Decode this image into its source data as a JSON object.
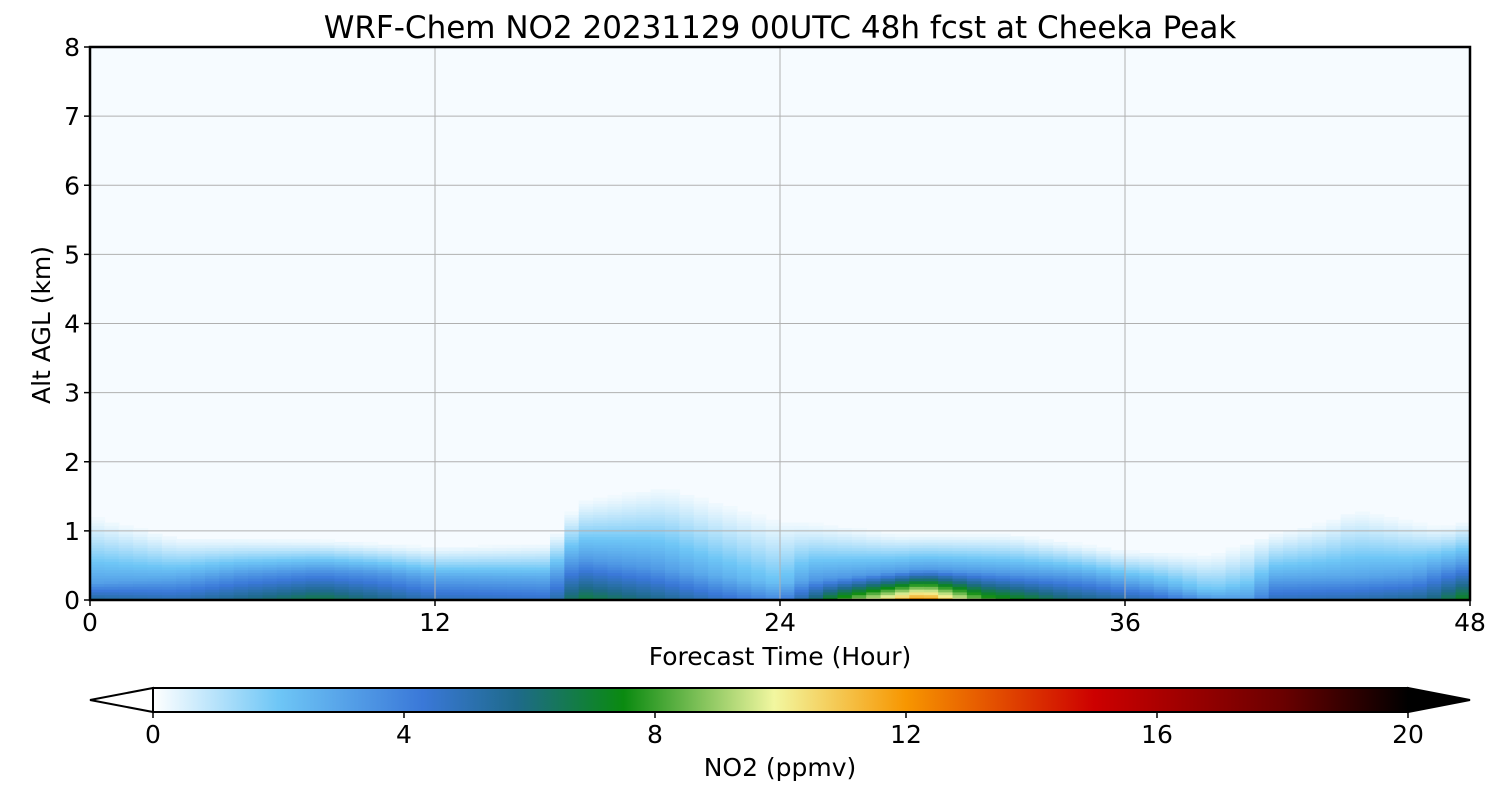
{
  "chart_data": {
    "type": "heatmap",
    "title": "WRF-Chem NO2  20231129 00UTC 48h fcst at Cheeka Peak",
    "xlabel": "Forecast Time (Hour)",
    "ylabel": "Alt AGL (km)",
    "xlim": [
      0,
      48
    ],
    "ylim": [
      0,
      8
    ],
    "x_ticks": [
      "0",
      "12",
      "24",
      "36",
      "48"
    ],
    "y_ticks": [
      "0",
      "1",
      "2",
      "3",
      "4",
      "5",
      "6",
      "7",
      "8"
    ],
    "grid": true,
    "colorbar": {
      "label": "NO2  (ppmv)",
      "min": 0,
      "max": 20,
      "ticks": [
        "0",
        "4",
        "8",
        "12",
        "16",
        "20"
      ],
      "extend": "both",
      "color_stops": [
        {
          "v": 0,
          "c": "#ffffff"
        },
        {
          "v": 2,
          "c": "#6ec6f6"
        },
        {
          "v": 4.3,
          "c": "#3a78d8"
        },
        {
          "v": 5.8,
          "c": "#1e6a8a"
        },
        {
          "v": 7.5,
          "c": "#0a8a10"
        },
        {
          "v": 9.9,
          "c": "#f2f7a0"
        },
        {
          "v": 12,
          "c": "#f79600"
        },
        {
          "v": 15,
          "c": "#cd0000"
        },
        {
          "v": 18,
          "c": "#6a0000"
        },
        {
          "v": 20,
          "c": "#000000"
        }
      ]
    },
    "field": {
      "units": "ppmv",
      "surface_value_by_hour": [
        [
          0,
          5.5
        ],
        [
          3,
          5.0
        ],
        [
          8,
          6.8
        ],
        [
          12,
          4.9
        ],
        [
          16,
          4.6
        ],
        [
          17,
          6.9
        ],
        [
          20,
          5.6
        ],
        [
          24,
          3.6
        ],
        [
          26,
          7.9
        ],
        [
          29,
          12.6
        ],
        [
          31,
          8.4
        ],
        [
          34,
          6.1
        ],
        [
          37,
          4.9
        ],
        [
          39,
          3.3
        ],
        [
          40.5,
          3.1
        ],
        [
          41,
          4.8
        ],
        [
          44,
          5.1
        ],
        [
          46.5,
          5.7
        ],
        [
          48,
          7.6
        ]
      ],
      "plume_top_km_by_hour": [
        [
          0,
          1.3
        ],
        [
          3,
          0.95
        ],
        [
          8,
          0.9
        ],
        [
          12,
          0.8
        ],
        [
          16,
          0.85
        ],
        [
          17,
          1.5
        ],
        [
          20,
          1.75
        ],
        [
          24,
          1.25
        ],
        [
          28,
          1.0
        ],
        [
          32,
          1.0
        ],
        [
          36,
          0.75
        ],
        [
          39,
          0.7
        ],
        [
          41,
          1.0
        ],
        [
          43,
          1.2
        ],
        [
          44,
          1.4
        ],
        [
          47,
          1.1
        ],
        [
          48,
          1.2
        ]
      ],
      "surface_layer_km_by_hour": [
        [
          0,
          0.25
        ],
        [
          8,
          0.45
        ],
        [
          12,
          0.35
        ],
        [
          16,
          0.35
        ],
        [
          17,
          0.6
        ],
        [
          20,
          0.45
        ],
        [
          24,
          0.25
        ],
        [
          29,
          0.45
        ],
        [
          34,
          0.35
        ],
        [
          39,
          0.15
        ],
        [
          41,
          0.35
        ],
        [
          46,
          0.35
        ],
        [
          48,
          0.55
        ]
      ]
    }
  }
}
